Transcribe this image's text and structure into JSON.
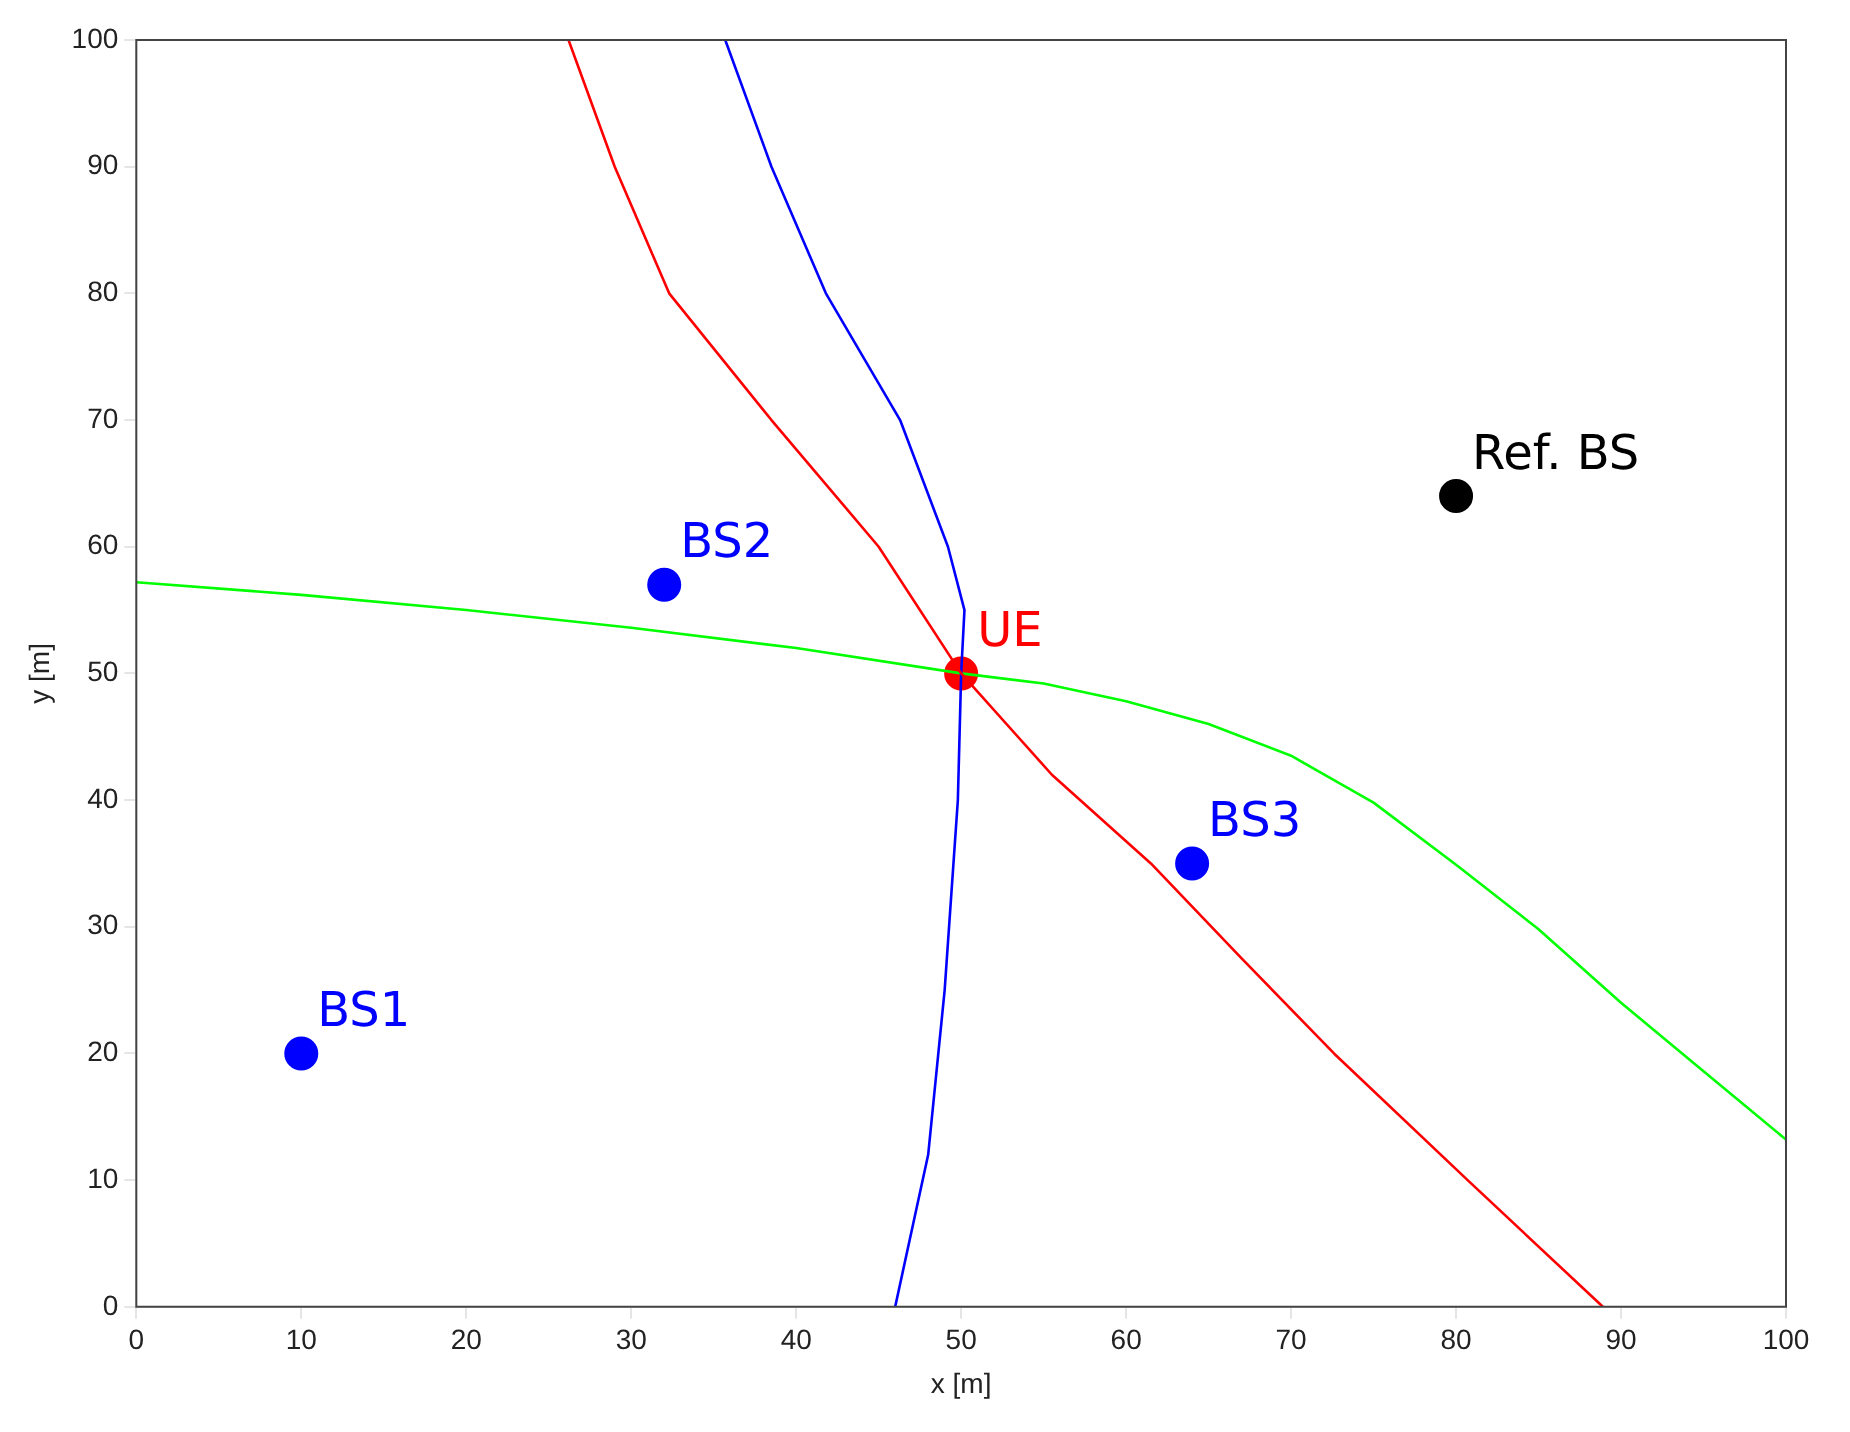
{
  "chart_data": {
    "type": "scatter",
    "xlabel": "x [m]",
    "ylabel": "y [m]",
    "xlim": [
      0,
      100
    ],
    "ylim": [
      0,
      100
    ],
    "xticks": [
      0,
      10,
      20,
      30,
      40,
      50,
      60,
      70,
      80,
      90,
      100
    ],
    "yticks": [
      0,
      10,
      20,
      30,
      40,
      50,
      60,
      70,
      80,
      90,
      100
    ],
    "grid": false,
    "legend": false,
    "marker": "circle",
    "series": [
      {
        "type": "line",
        "color": "#ff0000",
        "marker": "none",
        "line_style": "solid",
        "x": [
          26.2,
          29,
          32.3,
          38.5,
          45,
          50,
          55.5,
          61.5,
          67,
          72.6,
          80.7,
          88.9
        ],
        "values": [
          100,
          90,
          80,
          70,
          60,
          50,
          42,
          35,
          27.5,
          20,
          10,
          0
        ]
      },
      {
        "type": "line",
        "color": "#0000ff",
        "marker": "none",
        "line_style": "solid",
        "x": [
          35.7,
          38.5,
          41.8,
          46.3,
          49.2,
          50.2,
          50,
          49.8,
          49,
          48,
          46
        ],
        "values": [
          100,
          90,
          80,
          70,
          60,
          55,
          50,
          40,
          25,
          12,
          0
        ]
      },
      {
        "type": "line",
        "color": "#00ff00",
        "marker": "none",
        "line_style": "solid",
        "x": [
          0,
          10,
          20,
          30,
          40,
          50,
          55,
          60,
          65,
          70,
          75,
          80,
          85,
          90,
          95,
          100
        ],
        "values": [
          57.2,
          56.2,
          55,
          53.6,
          52,
          50,
          49.2,
          47.8,
          46,
          43.5,
          39.8,
          34.9,
          29.8,
          24,
          18.6,
          13.2
        ]
      },
      {
        "name": "BS1",
        "color": "#0000ff",
        "x": [
          10
        ],
        "values": [
          20
        ]
      },
      {
        "name": "BS2",
        "color": "#0000ff",
        "x": [
          32
        ],
        "values": [
          57
        ]
      },
      {
        "name": "BS3",
        "color": "#0000ff",
        "x": [
          64
        ],
        "values": [
          35
        ]
      },
      {
        "name": "Ref. BS",
        "color": "#000000",
        "x": [
          80
        ],
        "values": [
          64
        ]
      },
      {
        "name": "UE",
        "color": "#ff0000",
        "x": [
          50
        ],
        "values": [
          50
        ]
      }
    ]
  }
}
